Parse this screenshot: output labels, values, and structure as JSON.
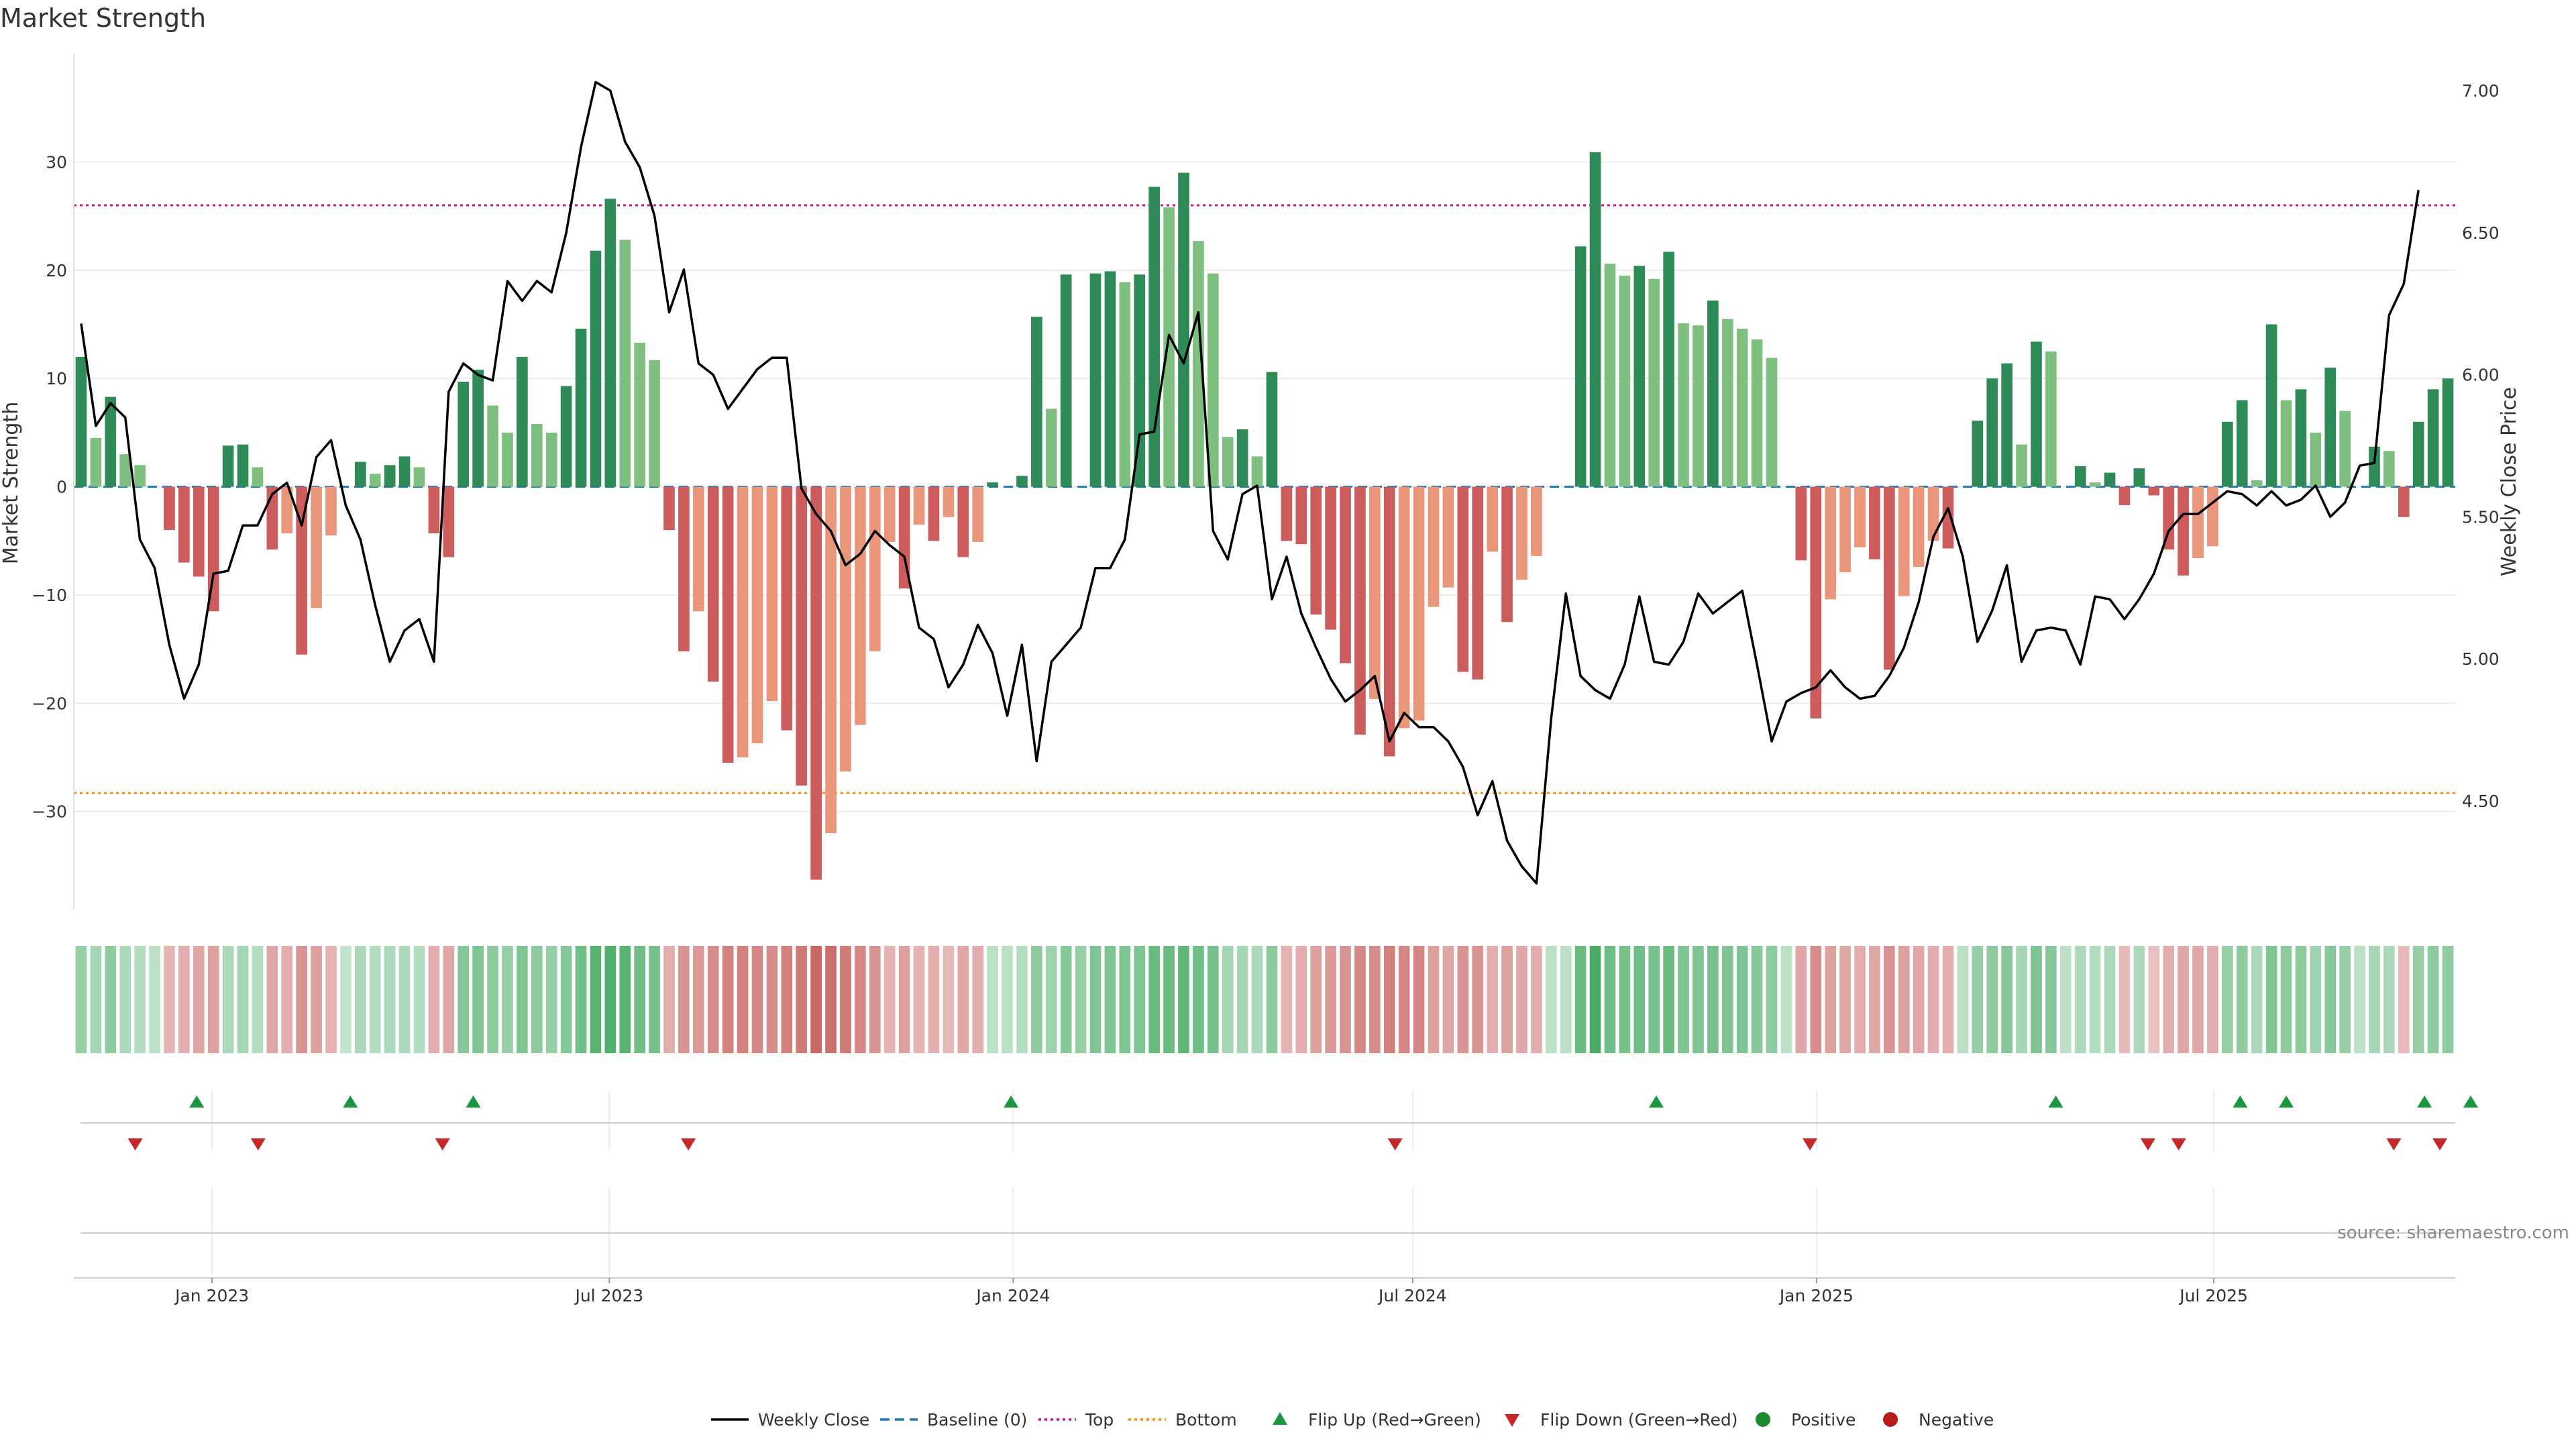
{
  "chart_data": {
    "type": "bar",
    "title": "Market Strength",
    "ylabel_left": "Market Strength",
    "ylabel_right": "Weekly Close Price",
    "source_note": "source: sharemaestro.com",
    "ylim_left": [
      -39,
      40
    ],
    "ylim_right": [
      4.12,
      7.13
    ],
    "yticks_left": [
      30,
      20,
      10,
      0,
      -10,
      -20,
      -30
    ],
    "yticks_left_labels": [
      "30",
      "20",
      "10",
      "0",
      "−10",
      "−20",
      "−30"
    ],
    "yticks_right": [
      7.0,
      6.5,
      6.0,
      5.5,
      5.0,
      4.5
    ],
    "yticks_right_labels": [
      "7.00",
      "6.50",
      "6.00",
      "5.50",
      "5.00",
      "4.50"
    ],
    "x_start": "2022-10-30",
    "x_end": "2025-10-19",
    "date_ticks": [
      "2023-01-01",
      "2023-07-01",
      "2024-01-01",
      "2024-07-01",
      "2025-01-01",
      "2025-07-01"
    ],
    "date_tick_labels": [
      "Jan 2023",
      "Jul 2023",
      "Jan 2024",
      "Jul 2024",
      "Jan 2025",
      "Jul 2025"
    ],
    "top_level": 26,
    "bottom_level": -28.3,
    "grid": true,
    "legend_position": "bottom-center",
    "colors": {
      "pos_strong": "#2e8b57",
      "pos_light": "#7fbf7f",
      "neg_strong": "#cd5c5c",
      "neg_light": "#e9967a",
      "price": "#000000",
      "baseline": "#1f77b4",
      "top": "#c71585",
      "bottom": "#ff8c00",
      "flip_up": "#1a9641",
      "flip_down": "#c62828",
      "positive": "#1b8a2e",
      "negative": "#b71c1c"
    },
    "strength": [
      12,
      4.5,
      8.3,
      3,
      2,
      0,
      -4,
      -7,
      -8.3,
      -11.5,
      3.8,
      3.9,
      1.8,
      -5.8,
      -4.3,
      -15.5,
      -11.2,
      -4.5,
      0,
      2.3,
      1.2,
      2,
      2.8,
      1.8,
      -4.3,
      -6.5,
      9.7,
      10.8,
      7.5,
      5,
      12,
      5.8,
      5,
      9.3,
      14.6,
      21.8,
      26.6,
      22.8,
      13.3,
      11.7,
      -4,
      -15.2,
      -11.5,
      -18,
      -25.5,
      -25,
      -23.7,
      -19.8,
      -22.5,
      -27.6,
      -36.3,
      -32,
      -26.3,
      -22,
      -15.2,
      -5.1,
      -9.4,
      -3.5,
      -5,
      -2.8,
      -6.5,
      -5.1,
      0.4,
      0,
      1,
      15.7,
      7.2,
      19.6,
      0,
      19.7,
      19.9,
      18.9,
      19.6,
      27.7,
      25.8,
      29,
      22.7,
      19.7,
      4.6,
      5.3,
      2.8,
      10.6,
      -5,
      -5.3,
      -11.8,
      -13.2,
      -16.3,
      -22.9,
      -19.6,
      -24.9,
      -22.3,
      -21.6,
      -11.1,
      -9.3,
      -17.1,
      -17.8,
      -6,
      -12.5,
      -8.6,
      -6.4,
      0,
      0,
      22.2,
      30.9,
      20.6,
      19.5,
      20.4,
      19.2,
      21.7,
      15.1,
      14.9,
      17.2,
      15.5,
      14.6,
      13.6,
      11.9,
      0,
      -6.8,
      -21.4,
      -10.4,
      -7.9,
      -5.6,
      -6.7,
      -16.9,
      -10.1,
      -7.4,
      -5,
      -5.7,
      0,
      6.1,
      10,
      11.4,
      3.9,
      13.4,
      12.5,
      0,
      1.9,
      0.4,
      1.3,
      -1.7,
      1.7,
      -0.8,
      -5.8,
      -8.2,
      -6.6,
      -5.5,
      6,
      8,
      0.6,
      15,
      8,
      9,
      5,
      11,
      7,
      0,
      3.7,
      3.3,
      -2.8,
      6,
      9,
      10
    ],
    "intensity": [
      0.45,
      0.35,
      0.5,
      0.3,
      0.25,
      0.2,
      0.35,
      0.4,
      0.45,
      0.5,
      0.3,
      0.35,
      0.25,
      0.45,
      0.4,
      0.6,
      0.5,
      0.35,
      0.15,
      0.3,
      0.25,
      0.3,
      0.3,
      0.25,
      0.4,
      0.45,
      0.55,
      0.6,
      0.5,
      0.45,
      0.6,
      0.5,
      0.45,
      0.55,
      0.7,
      0.85,
      0.9,
      0.85,
      0.7,
      0.65,
      0.4,
      0.6,
      0.55,
      0.65,
      0.75,
      0.75,
      0.7,
      0.65,
      0.75,
      0.8,
      0.95,
      0.9,
      0.8,
      0.7,
      0.6,
      0.35,
      0.5,
      0.35,
      0.4,
      0.3,
      0.45,
      0.4,
      0.2,
      0.2,
      0.25,
      0.5,
      0.4,
      0.55,
      0.45,
      0.6,
      0.6,
      0.6,
      0.6,
      0.75,
      0.75,
      0.8,
      0.7,
      0.65,
      0.35,
      0.35,
      0.3,
      0.5,
      0.35,
      0.4,
      0.5,
      0.55,
      0.6,
      0.7,
      0.65,
      0.75,
      0.7,
      0.7,
      0.5,
      0.45,
      0.6,
      0.6,
      0.4,
      0.5,
      0.45,
      0.4,
      0.2,
      0.2,
      0.75,
      0.95,
      0.7,
      0.65,
      0.7,
      0.65,
      0.75,
      0.6,
      0.6,
      0.65,
      0.6,
      0.6,
      0.55,
      0.5,
      0.2,
      0.45,
      0.65,
      0.5,
      0.45,
      0.4,
      0.45,
      0.6,
      0.5,
      0.45,
      0.4,
      0.4,
      0.2,
      0.45,
      0.5,
      0.55,
      0.35,
      0.6,
      0.55,
      0.2,
      0.3,
      0.25,
      0.3,
      0.3,
      0.3,
      0.25,
      0.4,
      0.45,
      0.45,
      0.4,
      0.45,
      0.5,
      0.3,
      0.6,
      0.5,
      0.5,
      0.4,
      0.55,
      0.45,
      0.2,
      0.35,
      0.3,
      0.3,
      0.45,
      0.5,
      0.5
    ],
    "weekly_close": [
      6.18,
      5.82,
      5.9,
      5.85,
      5.42,
      5.32,
      5.05,
      4.86,
      4.98,
      5.3,
      5.31,
      5.47,
      5.47,
      5.58,
      5.62,
      5.47,
      5.71,
      5.77,
      5.54,
      5.42,
      5.19,
      4.99,
      5.1,
      5.14,
      4.99,
      5.94,
      6.04,
      6.0,
      5.98,
      6.33,
      6.26,
      6.33,
      6.29,
      6.5,
      6.8,
      7.03,
      7.0,
      6.82,
      6.73,
      6.56,
      6.22,
      6.37,
      6.04,
      6.0,
      5.88,
      5.95,
      6.02,
      6.06,
      6.06,
      5.6,
      5.51,
      5.45,
      5.33,
      5.37,
      5.45,
      5.4,
      5.36,
      5.11,
      5.07,
      4.9,
      4.98,
      5.12,
      5.02,
      4.8,
      5.05,
      4.64,
      4.99,
      5.05,
      5.11,
      5.32,
      5.32,
      5.42,
      5.79,
      5.8,
      6.14,
      6.04,
      6.22,
      5.45,
      5.35,
      5.58,
      5.61,
      5.21,
      5.36,
      5.16,
      5.04,
      4.93,
      4.85,
      4.89,
      4.94,
      4.71,
      4.81,
      4.76,
      4.76,
      4.71,
      4.62,
      4.45,
      4.57,
      4.36,
      4.27,
      4.21,
      4.79,
      5.23,
      4.94,
      4.89,
      4.86,
      4.98,
      5.22,
      4.99,
      4.98,
      5.06,
      5.23,
      5.16,
      5.2,
      5.24,
      4.98,
      4.71,
      4.85,
      4.88,
      4.9,
      4.96,
      4.9,
      4.86,
      4.87,
      4.94,
      5.04,
      5.2,
      5.43,
      5.53,
      5.36,
      5.06,
      5.17,
      5.33,
      4.99,
      5.1,
      5.11,
      5.1,
      4.98,
      5.22,
      5.21,
      5.14,
      5.21,
      5.3,
      5.45,
      5.51,
      5.51,
      5.55,
      5.59,
      5.58,
      5.54,
      5.59,
      5.54,
      5.56,
      5.61,
      5.5,
      5.55,
      5.68,
      5.69,
      6.21,
      6.32,
      6.65
    ],
    "flip_up": [
      "2022-12-25",
      "2023-03-05",
      "2023-04-30",
      "2023-12-31",
      "2024-10-20",
      "2025-04-20",
      "2025-07-13",
      "2025-08-03",
      "2025-10-05",
      "2025-10-26"
    ],
    "flip_down": [
      "2022-11-27",
      "2023-01-22",
      "2023-04-16",
      "2023-08-06",
      "2024-06-23",
      "2024-12-29",
      "2025-06-01",
      "2025-06-15",
      "2025-09-21",
      "2025-10-12"
    ],
    "legend": [
      "Weekly Close",
      "Baseline (0)",
      "Top",
      "Bottom",
      "Flip Up (Red→Green)",
      "Flip Down (Green→Red)",
      "Positive",
      "Negative"
    ]
  }
}
